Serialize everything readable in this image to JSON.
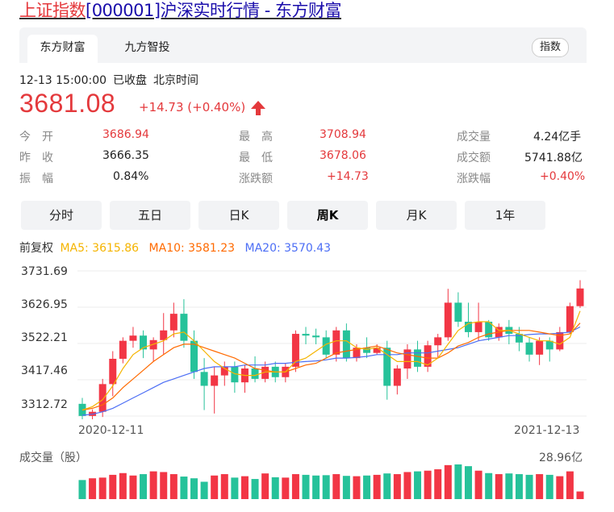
{
  "header": {
    "title_highlight": "上证指数",
    "title_rest": "[000001]沪深实时行情 - 东方财富"
  },
  "tabs": [
    {
      "label": "东方财富"
    },
    {
      "label": "九方智投"
    }
  ],
  "index_pill": "指数",
  "status": {
    "time": "12-13 15:00:00",
    "state": "已收盘",
    "zone": "北京时间"
  },
  "quote": {
    "price": "3681.08",
    "change": "+14.73 (+0.40%)"
  },
  "stats": {
    "open": {
      "label": "今　开",
      "value": "3686.94"
    },
    "prev": {
      "label": "昨　收",
      "value": "3666.35"
    },
    "amp": {
      "label": "振　幅",
      "value": "0.84%"
    },
    "high": {
      "label": "最　高",
      "value": "3708.94"
    },
    "low": {
      "label": "最　低",
      "value": "3678.06"
    },
    "chgamt": {
      "label": "涨跌额",
      "value": "+14.73"
    },
    "vol": {
      "label": "成交量",
      "value": "4.24亿手"
    },
    "turnover": {
      "label": "成交额",
      "value": "5741.88亿"
    },
    "chgpct": {
      "label": "涨跌幅",
      "value": "+0.40%"
    }
  },
  "kline_tabs": [
    {
      "label": "分时"
    },
    {
      "label": "五日"
    },
    {
      "label": "日K"
    },
    {
      "label": "周K"
    },
    {
      "label": "月K"
    },
    {
      "label": "1年"
    }
  ],
  "active_kline": "周K",
  "ma": {
    "fq": "前复权",
    "ma5": "MA5: 3615.86",
    "ma10": "MA10: 3581.23",
    "ma20": "MA20: 3570.43"
  },
  "colors": {
    "up": "#f23645",
    "down": "#26c29a",
    "ma5": "#f5b400",
    "ma10": "#ff6a00",
    "ma20": "#4c6ef5"
  },
  "chart_data": {
    "type": "candlestick",
    "yticks": [
      "3731.69",
      "3626.95",
      "3522.21",
      "3417.46",
      "3312.72"
    ],
    "ylim": [
      3312.72,
      3731.69
    ],
    "x_start": "2020-12-11",
    "x_end": "2021-12-13",
    "ohlc": [
      [
        3348,
        3365,
        3300,
        3313
      ],
      [
        3313,
        3332,
        3298,
        3325
      ],
      [
        3325,
        3420,
        3310,
        3405
      ],
      [
        3405,
        3500,
        3370,
        3478
      ],
      [
        3478,
        3540,
        3465,
        3530
      ],
      [
        3530,
        3570,
        3510,
        3545
      ],
      [
        3545,
        3560,
        3480,
        3505
      ],
      [
        3505,
        3540,
        3470,
        3532
      ],
      [
        3532,
        3610,
        3490,
        3560
      ],
      [
        3560,
        3640,
        3540,
        3608
      ],
      [
        3608,
        3650,
        3510,
        3530
      ],
      [
        3530,
        3560,
        3420,
        3440
      ],
      [
        3440,
        3480,
        3330,
        3400
      ],
      [
        3400,
        3455,
        3320,
        3430
      ],
      [
        3430,
        3470,
        3400,
        3455
      ],
      [
        3455,
        3470,
        3380,
        3410
      ],
      [
        3410,
        3460,
        3380,
        3450
      ],
      [
        3450,
        3485,
        3410,
        3420
      ],
      [
        3420,
        3470,
        3410,
        3455
      ],
      [
        3455,
        3470,
        3410,
        3425
      ],
      [
        3425,
        3465,
        3410,
        3455
      ],
      [
        3455,
        3560,
        3440,
        3550
      ],
      [
        3550,
        3570,
        3520,
        3545
      ],
      [
        3545,
        3565,
        3520,
        3540
      ],
      [
        3540,
        3560,
        3480,
        3490
      ],
      [
        3490,
        3570,
        3470,
        3560
      ],
      [
        3560,
        3580,
        3470,
        3480
      ],
      [
        3480,
        3520,
        3470,
        3510
      ],
      [
        3510,
        3540,
        3480,
        3495
      ],
      [
        3495,
        3520,
        3490,
        3510
      ],
      [
        3510,
        3530,
        3360,
        3400
      ],
      [
        3400,
        3460,
        3375,
        3450
      ],
      [
        3450,
        3520,
        3420,
        3505
      ],
      [
        3505,
        3530,
        3440,
        3455
      ],
      [
        3455,
        3530,
        3440,
        3517
      ],
      [
        3517,
        3550,
        3480,
        3540
      ],
      [
        3540,
        3680,
        3530,
        3640
      ],
      [
        3640,
        3670,
        3570,
        3585
      ],
      [
        3585,
        3640,
        3540,
        3555
      ],
      [
        3555,
        3640,
        3530,
        3585
      ],
      [
        3585,
        3590,
        3530,
        3540
      ],
      [
        3540,
        3580,
        3530,
        3570
      ],
      [
        3570,
        3590,
        3520,
        3550
      ],
      [
        3550,
        3570,
        3500,
        3525
      ],
      [
        3525,
        3540,
        3470,
        3490
      ],
      [
        3490,
        3540,
        3460,
        3530
      ],
      [
        3530,
        3540,
        3470,
        3505
      ],
      [
        3505,
        3570,
        3500,
        3555
      ],
      [
        3555,
        3640,
        3550,
        3630
      ],
      [
        3630,
        3705,
        3625,
        3681
      ]
    ],
    "ma5": [
      3330,
      3340,
      3360,
      3400,
      3450,
      3490,
      3510,
      3520,
      3530,
      3550,
      3555,
      3530,
      3500,
      3470,
      3450,
      3435,
      3430,
      3430,
      3440,
      3440,
      3440,
      3470,
      3480,
      3500,
      3520,
      3530,
      3530,
      3510,
      3505,
      3510,
      3490,
      3470,
      3470,
      3470,
      3460,
      3480,
      3520,
      3560,
      3580,
      3585,
      3585,
      3560,
      3560,
      3550,
      3540,
      3530,
      3530,
      3520,
      3540,
      3616
    ],
    "ma10": [
      3330,
      3335,
      3345,
      3365,
      3395,
      3420,
      3445,
      3470,
      3490,
      3510,
      3520,
      3520,
      3510,
      3500,
      3490,
      3480,
      3465,
      3450,
      3445,
      3440,
      3440,
      3450,
      3460,
      3465,
      3480,
      3495,
      3500,
      3505,
      3510,
      3515,
      3505,
      3495,
      3490,
      3485,
      3480,
      3480,
      3495,
      3515,
      3525,
      3540,
      3550,
      3555,
      3560,
      3560,
      3560,
      3555,
      3550,
      3545,
      3550,
      3581
    ],
    "ma20": [
      3315,
      3318,
      3325,
      3335,
      3350,
      3365,
      3380,
      3395,
      3410,
      3420,
      3430,
      3440,
      3450,
      3455,
      3455,
      3455,
      3460,
      3460,
      3460,
      3465,
      3465,
      3468,
      3470,
      3472,
      3475,
      3480,
      3480,
      3482,
      3485,
      3490,
      3490,
      3490,
      3495,
      3495,
      3495,
      3500,
      3505,
      3510,
      3520,
      3530,
      3535,
      3540,
      3545,
      3545,
      3548,
      3550,
      3550,
      3552,
      3555,
      3570
    ],
    "volume_label": "成交量（股）",
    "volume_max": "28.96亿",
    "volume": [
      0.55,
      0.6,
      0.62,
      0.7,
      0.75,
      0.68,
      0.72,
      0.8,
      0.78,
      0.72,
      0.65,
      0.6,
      0.5,
      0.68,
      0.72,
      0.62,
      0.66,
      0.58,
      0.74,
      0.63,
      0.62,
      0.72,
      0.7,
      0.68,
      0.69,
      0.72,
      0.67,
      0.66,
      0.68,
      0.7,
      0.74,
      0.72,
      0.78,
      0.8,
      0.82,
      0.86,
      0.98,
      1.0,
      0.95,
      0.82,
      0.75,
      0.72,
      0.74,
      0.72,
      0.7,
      0.72,
      0.7,
      0.66,
      0.8,
      0.22
    ]
  }
}
